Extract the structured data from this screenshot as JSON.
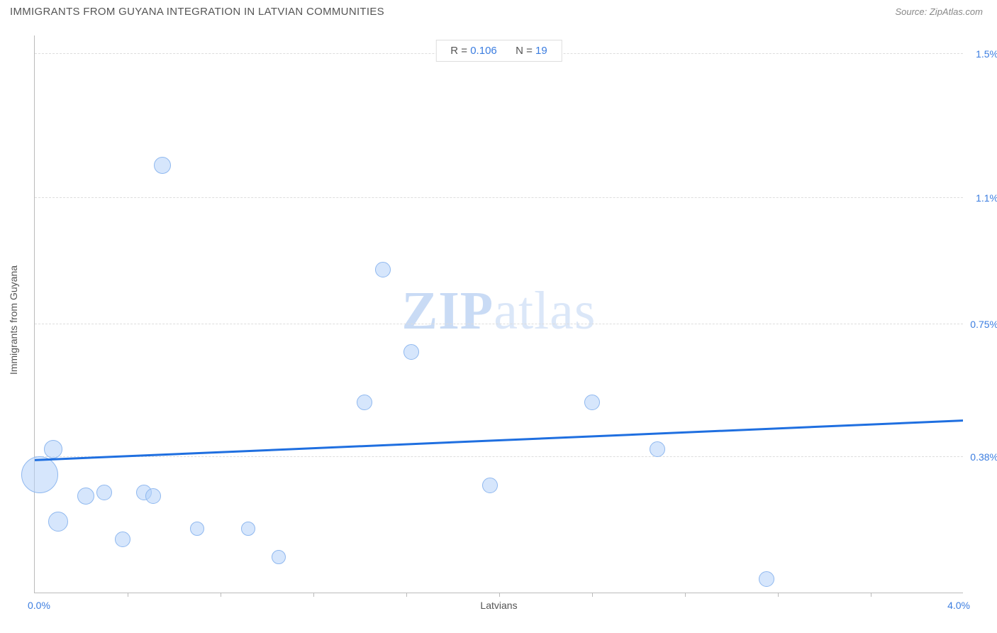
{
  "header": {
    "title": "IMMIGRANTS FROM GUYANA INTEGRATION IN LATVIAN COMMUNITIES",
    "source_prefix": "Source: ",
    "source_name": "ZipAtlas.com"
  },
  "chart": {
    "type": "scatter",
    "x_label": "Latvians",
    "y_label": "Immigrants from Guyana",
    "x_min_label": "0.0%",
    "x_max_label": "4.0%",
    "xlim": [
      0.0,
      4.0
    ],
    "ylim": [
      0.0,
      1.55
    ],
    "y_ticks": [
      {
        "value": 0.38,
        "label": "0.38%"
      },
      {
        "value": 0.75,
        "label": "0.75%"
      },
      {
        "value": 1.1,
        "label": "1.1%"
      },
      {
        "value": 1.5,
        "label": "1.5%"
      }
    ],
    "x_tick_values": [
      0.4,
      0.8,
      1.2,
      1.6,
      2.0,
      2.4,
      2.8,
      3.2,
      3.6
    ],
    "stats": {
      "r_label": "R =",
      "r_value": "0.106",
      "n_label": "N =",
      "n_value": "19"
    },
    "trend": {
      "y_at_xmin": 0.37,
      "y_at_xmax": 0.48
    },
    "bubble_fill": "rgba(180,210,250,0.55)",
    "bubble_stroke": "#8fb8ef",
    "trend_color": "#1f6fe0",
    "grid_color": "#dddddd",
    "axis_color": "#bbbbbb",
    "label_color": "#3b7de0",
    "points": [
      {
        "x": 0.02,
        "y": 0.33,
        "r": 26
      },
      {
        "x": 0.08,
        "y": 0.4,
        "r": 13
      },
      {
        "x": 0.1,
        "y": 0.2,
        "r": 14
      },
      {
        "x": 0.22,
        "y": 0.27,
        "r": 12
      },
      {
        "x": 0.3,
        "y": 0.28,
        "r": 11
      },
      {
        "x": 0.38,
        "y": 0.15,
        "r": 11
      },
      {
        "x": 0.47,
        "y": 0.28,
        "r": 11
      },
      {
        "x": 0.51,
        "y": 0.27,
        "r": 11
      },
      {
        "x": 0.55,
        "y": 1.19,
        "r": 12
      },
      {
        "x": 0.7,
        "y": 0.18,
        "r": 10
      },
      {
        "x": 0.92,
        "y": 0.18,
        "r": 10
      },
      {
        "x": 1.05,
        "y": 0.1,
        "r": 10
      },
      {
        "x": 1.42,
        "y": 0.53,
        "r": 11
      },
      {
        "x": 1.5,
        "y": 0.9,
        "r": 11
      },
      {
        "x": 1.62,
        "y": 0.67,
        "r": 11
      },
      {
        "x": 1.96,
        "y": 0.3,
        "r": 11
      },
      {
        "x": 2.4,
        "y": 0.53,
        "r": 11
      },
      {
        "x": 2.68,
        "y": 0.4,
        "r": 11
      },
      {
        "x": 3.15,
        "y": 0.04,
        "r": 11
      }
    ],
    "watermark": {
      "bold": "ZIP",
      "rest": "atlas"
    }
  }
}
